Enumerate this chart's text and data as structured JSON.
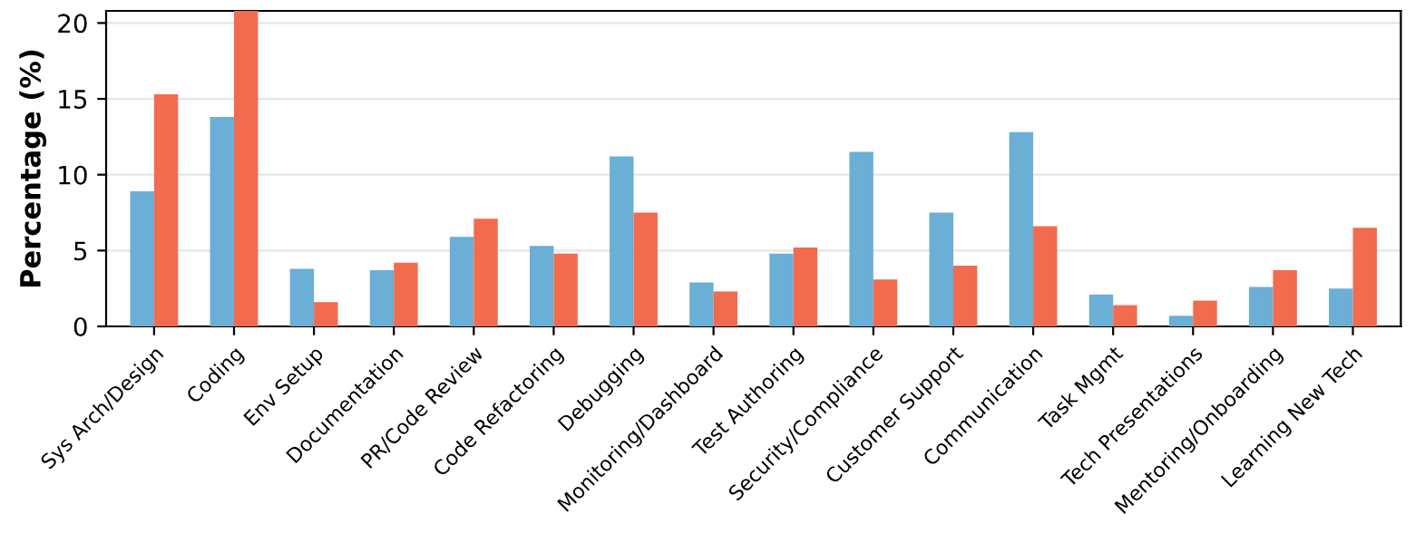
{
  "chart_data": {
    "type": "bar",
    "ylabel": "Percentage (%)",
    "categories": [
      "Sys Arch/Design",
      "Coding",
      "Env Setup",
      "Documentation",
      "PR/Code Review",
      "Code Refactoring",
      "Debugging",
      "Monitoring/Dashboard",
      "Test Authoring",
      "Security/Compliance",
      "Customer Support",
      "Communication",
      "Task Mgmt",
      "Tech Presentations",
      "Mentoring/Onboarding",
      "Learning New Tech"
    ],
    "series": [
      {
        "color": "#6baed6",
        "values": [
          8.9,
          13.8,
          3.8,
          3.7,
          5.9,
          5.3,
          11.2,
          2.9,
          4.8,
          11.5,
          7.5,
          12.8,
          2.1,
          0.7,
          2.6,
          2.5
        ]
      },
      {
        "color": "#f26b4f",
        "values": [
          15.3,
          20.8,
          1.6,
          4.2,
          7.1,
          4.8,
          7.5,
          2.3,
          5.2,
          3.1,
          4.0,
          6.6,
          1.4,
          1.7,
          3.7,
          6.5
        ]
      }
    ],
    "ylim": [
      0,
      20.8
    ],
    "yticks": [
      0,
      5,
      10,
      15,
      20
    ],
    "grid": "y"
  }
}
